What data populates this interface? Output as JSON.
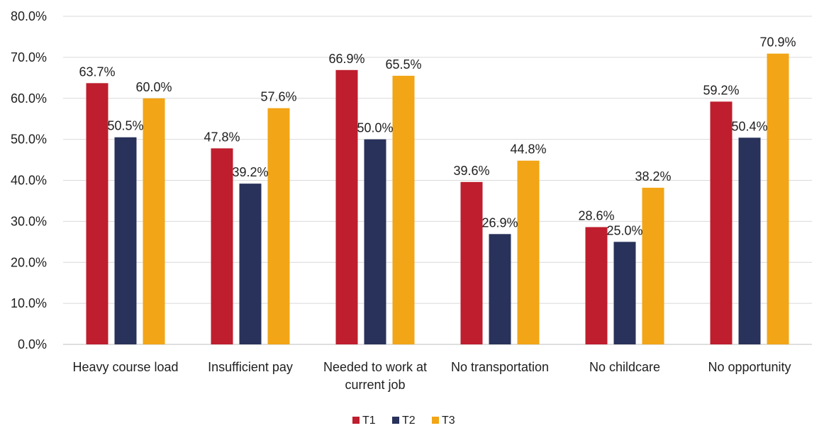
{
  "chart_data": {
    "type": "bar",
    "categories": [
      [
        "Heavy course load"
      ],
      [
        "Insufficient pay"
      ],
      [
        "Needed to work at",
        "current job"
      ],
      [
        "No transportation"
      ],
      [
        "No childcare"
      ],
      [
        "No opportunity"
      ]
    ],
    "series": [
      {
        "name": "T1",
        "color": "#BE1E2D",
        "values": [
          63.7,
          47.8,
          66.9,
          39.6,
          28.6,
          59.2
        ]
      },
      {
        "name": "T2",
        "color": "#28325A",
        "values": [
          50.5,
          39.2,
          50.0,
          26.9,
          25.0,
          50.4
        ]
      },
      {
        "name": "T3",
        "color": "#F2A516",
        "values": [
          60.0,
          57.6,
          65.5,
          44.8,
          38.2,
          70.9
        ]
      }
    ],
    "ylim": [
      0,
      80
    ],
    "yticks": [
      0,
      10,
      20,
      30,
      40,
      50,
      60,
      70,
      80
    ],
    "value_format": "percent_1dp",
    "grid": true,
    "legend_position": "bottom"
  }
}
